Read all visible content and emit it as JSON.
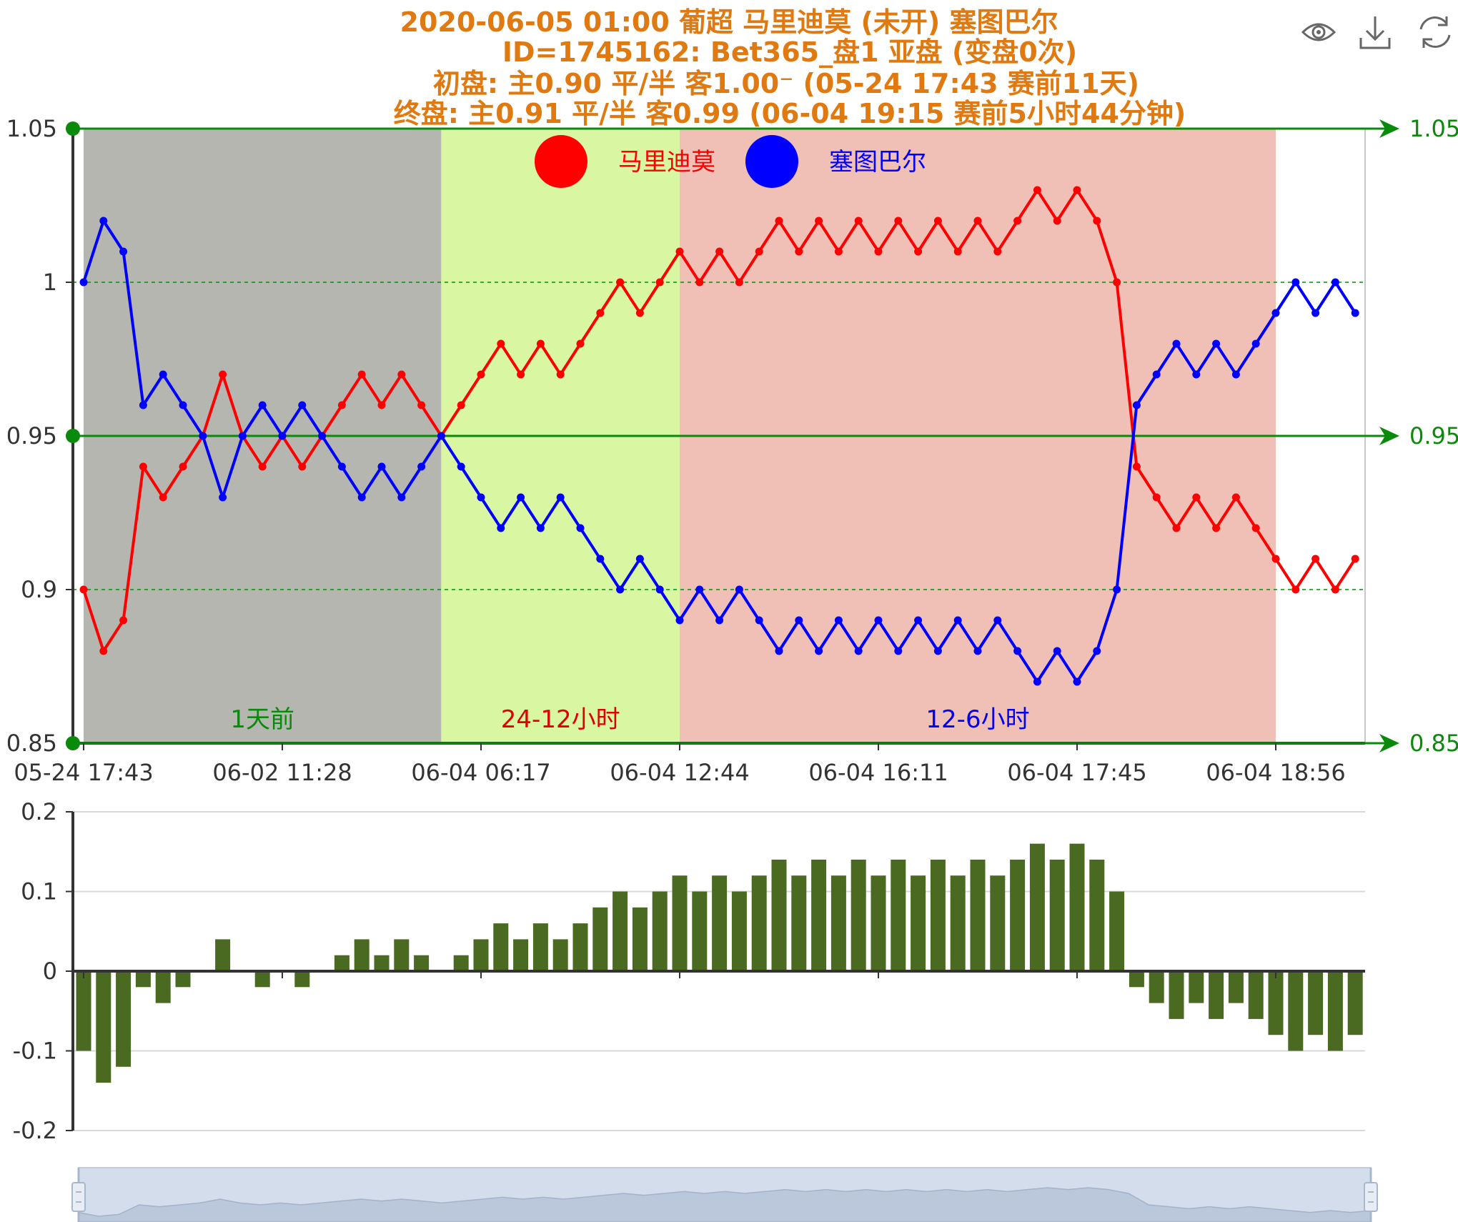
{
  "title_lines": [
    "2020-06-05 01:00 葡超 马里迪莫 (未开) 塞图巴尔",
    "ID=1745162: Bet365_盘1 亚盘 (变盘0次)",
    "初盘:    主0.90    平/半  客1.00⁻   (05-24 17:43 赛前11天)",
    "终盘:    主0.91    平/半  客0.99     (06-04 19:15 赛前5小时44分钟)"
  ],
  "toolbox": [
    {
      "name": "eye-icon"
    },
    {
      "name": "download-icon"
    },
    {
      "name": "refresh-icon"
    }
  ],
  "colors": {
    "home": "#ff0000",
    "away": "#0000ff",
    "bar": "#4a6a22",
    "reference": "#0a8a0a",
    "band_1d": "#b5b6b0",
    "band_24_12": "#d9f7a3",
    "band_12_6": "#f0bfb6",
    "title": "#e07a10"
  },
  "chart_data": [
    {
      "type": "line",
      "ylim": [
        0.85,
        1.05
      ],
      "yticks_left": [
        "1.05",
        "1",
        "0.95",
        "0.9",
        "0.85"
      ],
      "yticks_right": [
        "1.05",
        "0.95",
        "0.85"
      ],
      "reference_lines": [
        1.05,
        0.95,
        0.85
      ],
      "dotted_gridlines": [
        1.0,
        0.9
      ],
      "x_tick_labels": [
        "05-24 17:43",
        "06-02 11:28",
        "06-04 06:17",
        "06-04 12:44",
        "06-04 16:11",
        "06-04 17:45",
        "06-04 18:56"
      ],
      "x_tick_indices": [
        0,
        10,
        20,
        30,
        40,
        50,
        60
      ],
      "legend": [
        {
          "label": "马里迪莫",
          "color": "#ff0000"
        },
        {
          "label": "塞图巴尔",
          "color": "#0000ff"
        }
      ],
      "bands": [
        {
          "label": "1天前",
          "start": 0,
          "end": 18,
          "color": "#b5b6b0",
          "label_color": "#0a8a0a"
        },
        {
          "label": "24-12小时",
          "start": 18,
          "end": 30,
          "color": "#d9f7a3",
          "label_color": "#e00000"
        },
        {
          "label": "12-6小时",
          "start": 30,
          "end": 60,
          "color": "#f0bfb6",
          "label_color": "#0000ee"
        }
      ],
      "series": [
        {
          "name": "马里迪莫",
          "color": "#ff0000",
          "values": [
            0.9,
            0.88,
            0.89,
            0.94,
            0.93,
            0.94,
            0.95,
            0.97,
            0.95,
            0.94,
            0.95,
            0.94,
            0.95,
            0.96,
            0.97,
            0.96,
            0.97,
            0.96,
            0.95,
            0.96,
            0.97,
            0.98,
            0.97,
            0.98,
            0.97,
            0.98,
            0.99,
            1.0,
            0.99,
            1.0,
            1.01,
            1.0,
            1.01,
            1.0,
            1.01,
            1.02,
            1.01,
            1.02,
            1.01,
            1.02,
            1.01,
            1.02,
            1.01,
            1.02,
            1.01,
            1.02,
            1.01,
            1.02,
            1.03,
            1.02,
            1.03,
            1.02,
            1.0,
            0.94,
            0.93,
            0.92,
            0.93,
            0.92,
            0.93,
            0.92,
            0.91,
            0.9,
            0.91,
            0.9,
            0.91
          ]
        },
        {
          "name": "塞图巴尔",
          "color": "#0000ff",
          "values": [
            1.0,
            1.02,
            1.01,
            0.96,
            0.97,
            0.96,
            0.95,
            0.93,
            0.95,
            0.96,
            0.95,
            0.96,
            0.95,
            0.94,
            0.93,
            0.94,
            0.93,
            0.94,
            0.95,
            0.94,
            0.93,
            0.92,
            0.93,
            0.92,
            0.93,
            0.92,
            0.91,
            0.9,
            0.91,
            0.9,
            0.89,
            0.9,
            0.89,
            0.9,
            0.89,
            0.88,
            0.89,
            0.88,
            0.89,
            0.88,
            0.89,
            0.88,
            0.89,
            0.88,
            0.89,
            0.88,
            0.89,
            0.88,
            0.87,
            0.88,
            0.87,
            0.88,
            0.9,
            0.96,
            0.97,
            0.98,
            0.97,
            0.98,
            0.97,
            0.98,
            0.99,
            1.0,
            0.99,
            1.0,
            0.99
          ]
        }
      ]
    },
    {
      "type": "bar",
      "ylim": [
        -0.2,
        0.2
      ],
      "yticks": [
        "0.2",
        "0.1",
        "0",
        "-0.1",
        "-0.2"
      ],
      "values": [
        -0.1,
        -0.14,
        -0.12,
        -0.02,
        -0.04,
        -0.02,
        0.0,
        0.04,
        0.0,
        -0.02,
        0.0,
        -0.02,
        0.0,
        0.02,
        0.04,
        0.02,
        0.04,
        0.02,
        0.0,
        0.02,
        0.04,
        0.06,
        0.04,
        0.06,
        0.04,
        0.06,
        0.08,
        0.1,
        0.08,
        0.1,
        0.12,
        0.1,
        0.12,
        0.1,
        0.12,
        0.14,
        0.12,
        0.14,
        0.12,
        0.14,
        0.12,
        0.14,
        0.12,
        0.14,
        0.12,
        0.14,
        0.12,
        0.14,
        0.16,
        0.14,
        0.16,
        0.14,
        0.1,
        -0.02,
        -0.04,
        -0.06,
        -0.04,
        -0.06,
        -0.04,
        -0.06,
        -0.08,
        -0.1,
        -0.08,
        -0.1,
        -0.08
      ]
    }
  ],
  "data_zoom": {
    "start": 0,
    "end": 100
  }
}
